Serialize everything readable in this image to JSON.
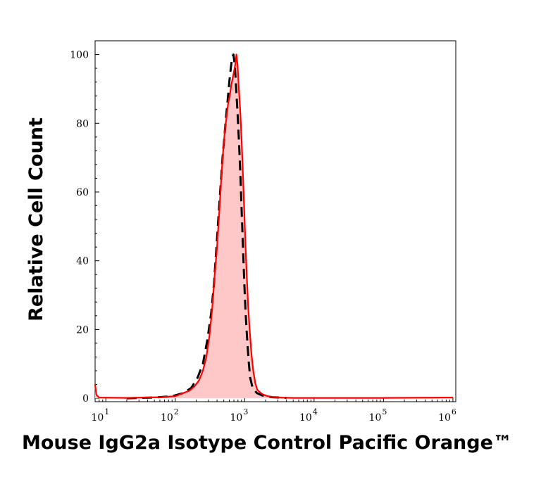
{
  "chart_data": {
    "type": "area",
    "xlabel": "Mouse IgG2a Isotype Control  Pacific Orange™",
    "ylabel": "Relative Cell Count",
    "x_scale": "log",
    "xlim": [
      7,
      1100000
    ],
    "ylim": [
      -1,
      104
    ],
    "x_ticks": [
      {
        "value": 10,
        "base": "10",
        "exp": "1"
      },
      {
        "value": 100,
        "base": "10",
        "exp": "2"
      },
      {
        "value": 1000,
        "base": "10",
        "exp": "3"
      },
      {
        "value": 10000,
        "base": "10",
        "exp": "4"
      },
      {
        "value": 100000,
        "base": "10",
        "exp": "5"
      },
      {
        "value": 1000000,
        "base": "10",
        "exp": "6"
      }
    ],
    "y_ticks": [
      0,
      20,
      40,
      60,
      80,
      100
    ],
    "grid": false,
    "series": [
      {
        "style": "filled-solid",
        "color": "#ff0000",
        "fill": "#ffc8c8",
        "points": [
          [
            7,
            4
          ],
          [
            7.3,
            1
          ],
          [
            8,
            0.2
          ],
          [
            20,
            0.1
          ],
          [
            60,
            0.3
          ],
          [
            100,
            0.6
          ],
          [
            130,
            1.5
          ],
          [
            160,
            2.2
          ],
          [
            190,
            3.5
          ],
          [
            220,
            5.2
          ],
          [
            250,
            8
          ],
          [
            280,
            12
          ],
          [
            310,
            18
          ],
          [
            340,
            26
          ],
          [
            370,
            36
          ],
          [
            400,
            44
          ],
          [
            430,
            54
          ],
          [
            460,
            64
          ],
          [
            490,
            72
          ],
          [
            520,
            78
          ],
          [
            550,
            82
          ],
          [
            580,
            86
          ],
          [
            610,
            88
          ],
          [
            640,
            91
          ],
          [
            670,
            93
          ],
          [
            700,
            95
          ],
          [
            730,
            97
          ],
          [
            760,
            100
          ],
          [
            790,
            97
          ],
          [
            820,
            91
          ],
          [
            860,
            84
          ],
          [
            900,
            76
          ],
          [
            940,
            66
          ],
          [
            980,
            56
          ],
          [
            1020,
            46
          ],
          [
            1070,
            36
          ],
          [
            1120,
            27
          ],
          [
            1180,
            20
          ],
          [
            1250,
            13
          ],
          [
            1330,
            8
          ],
          [
            1420,
            4.5
          ],
          [
            1520,
            2.5
          ],
          [
            1650,
            1.8
          ],
          [
            1800,
            1.2
          ],
          [
            2000,
            0.8
          ],
          [
            2400,
            0.4
          ],
          [
            3000,
            0.2
          ],
          [
            5000,
            0.1
          ],
          [
            100000,
            0.1
          ],
          [
            1000000,
            0.2
          ]
        ]
      },
      {
        "style": "dashed",
        "color": "#000000",
        "points": [
          [
            20,
            0
          ],
          [
            50,
            0.2
          ],
          [
            90,
            0.6
          ],
          [
            130,
            1.5
          ],
          [
            170,
            3
          ],
          [
            210,
            6
          ],
          [
            250,
            10
          ],
          [
            290,
            17
          ],
          [
            330,
            25
          ],
          [
            360,
            33
          ],
          [
            390,
            43
          ],
          [
            420,
            53
          ],
          [
            450,
            62
          ],
          [
            480,
            70
          ],
          [
            510,
            76
          ],
          [
            540,
            82
          ],
          [
            570,
            87
          ],
          [
            600,
            92
          ],
          [
            630,
            96
          ],
          [
            660,
            99
          ],
          [
            690,
            100
          ],
          [
            720,
            97
          ],
          [
            750,
            91
          ],
          [
            790,
            83
          ],
          [
            830,
            74
          ],
          [
            870,
            64
          ],
          [
            910,
            53
          ],
          [
            950,
            43
          ],
          [
            990,
            33
          ],
          [
            1030,
            25
          ],
          [
            1080,
            18
          ],
          [
            1140,
            11
          ],
          [
            1200,
            6
          ],
          [
            1300,
            3
          ],
          [
            1500,
            1.5
          ],
          [
            1800,
            0.8
          ],
          [
            2500,
            0.3
          ],
          [
            4000,
            0.1
          ]
        ]
      }
    ]
  }
}
